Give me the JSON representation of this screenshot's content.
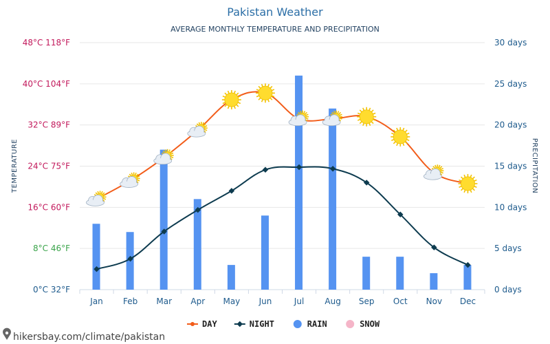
{
  "chart_data": {
    "type": "bar+line",
    "title": "Pakistan Weather",
    "subtitle": "AVERAGE MONTHLY TEMPERATURE AND PRECIPITATION",
    "ylabel_left": "TEMPERATURE",
    "ylabel_right": "PRECIPITATION",
    "categories": [
      "Jan",
      "Feb",
      "Mar",
      "Apr",
      "May",
      "Jun",
      "Jul",
      "Aug",
      "Sep",
      "Oct",
      "Nov",
      "Dec"
    ],
    "left_axis": {
      "min": 0,
      "max": 48,
      "ticks": [
        {
          "value": 0,
          "label": "0°C 32°F",
          "color": "#1d5a8c"
        },
        {
          "value": 8,
          "label": "8°C 46°F",
          "color": "#3aa44a"
        },
        {
          "value": 16,
          "label": "16°C 60°F",
          "color": "#c2185b"
        },
        {
          "value": 24,
          "label": "24°C 75°F",
          "color": "#c2185b"
        },
        {
          "value": 32,
          "label": "32°C 89°F",
          "color": "#c2185b"
        },
        {
          "value": 40,
          "label": "40°C 104°F",
          "color": "#c2185b"
        },
        {
          "value": 48,
          "label": "48°C 118°F",
          "color": "#c2185b"
        }
      ]
    },
    "right_axis": {
      "min": 0,
      "max": 30,
      "ticks": [
        {
          "value": 0,
          "label": "0 days"
        },
        {
          "value": 5,
          "label": "5 days"
        },
        {
          "value": 10,
          "label": "10 days"
        },
        {
          "value": 15,
          "label": "15 days"
        },
        {
          "value": 20,
          "label": "20 days"
        },
        {
          "value": 25,
          "label": "25 days"
        },
        {
          "value": 30,
          "label": "30 days"
        }
      ]
    },
    "series": [
      {
        "name": "DAY",
        "axis": "left",
        "kind": "line",
        "color": "#f25c19",
        "values": [
          17.6,
          21.2,
          25.7,
          31.0,
          36.9,
          38.2,
          33.2,
          33.2,
          33.6,
          29.7,
          22.7,
          20.6
        ]
      },
      {
        "name": "NIGHT",
        "axis": "left",
        "kind": "line",
        "color": "#0d3b4f",
        "values": [
          4.0,
          6.0,
          11.3,
          15.5,
          19.2,
          23.3,
          23.8,
          23.5,
          20.8,
          14.6,
          8.2,
          4.8
        ]
      },
      {
        "name": "RAIN",
        "axis": "right",
        "kind": "bar",
        "color": "#5593f1",
        "values": [
          8,
          7,
          17,
          11,
          3,
          9,
          26,
          22,
          4,
          4,
          2,
          3
        ]
      },
      {
        "name": "SNOW",
        "axis": "right",
        "kind": "bar",
        "color": "#f5b5c8",
        "values": [
          0,
          0,
          0,
          0,
          0,
          0,
          0,
          0,
          0,
          0,
          0,
          0
        ]
      }
    ],
    "weather_icons": [
      "sun-cloud",
      "sun-cloud",
      "sun-cloud",
      "sun-cloud",
      "sun",
      "sun",
      "sun-cloud",
      "sun-cloud",
      "sun",
      "sun",
      "sun-cloud",
      "sun"
    ],
    "legend": {
      "placement": "bottom"
    },
    "grid": true
  },
  "credit": "hikersbay.com/climate/pakistan"
}
